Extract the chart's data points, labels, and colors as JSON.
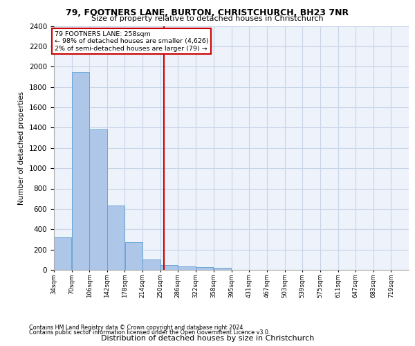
{
  "title1": "79, FOOTNERS LANE, BURTON, CHRISTCHURCH, BH23 7NR",
  "title2": "Size of property relative to detached houses in Christchurch",
  "xlabel": "Distribution of detached houses by size in Christchurch",
  "ylabel": "Number of detached properties",
  "footnote1": "Contains HM Land Registry data © Crown copyright and database right 2024.",
  "footnote2": "Contains public sector information licensed under the Open Government Licence v3.0.",
  "annotation_line1": "79 FOOTNERS LANE: 258sqm",
  "annotation_line2": "← 98% of detached houses are smaller (4,626)",
  "annotation_line3": "2% of semi-detached houses are larger (79) →",
  "property_size": 258,
  "bin_edges": [
    34,
    70,
    106,
    142,
    178,
    214,
    250,
    286,
    322,
    358,
    395,
    431,
    467,
    503,
    539,
    575,
    611,
    647,
    683,
    719,
    755
  ],
  "bar_heights": [
    320,
    1950,
    1380,
    630,
    275,
    100,
    50,
    35,
    30,
    20,
    0,
    0,
    0,
    0,
    0,
    0,
    0,
    0,
    0,
    0
  ],
  "bar_color": "#aec6e8",
  "bar_edge_color": "#5a9fd4",
  "vline_color": "#cc0000",
  "annotation_box_color": "#cc0000",
  "ylim": [
    0,
    2400
  ],
  "bg_color": "#eef2fa",
  "grid_color": "#c8d4e8"
}
